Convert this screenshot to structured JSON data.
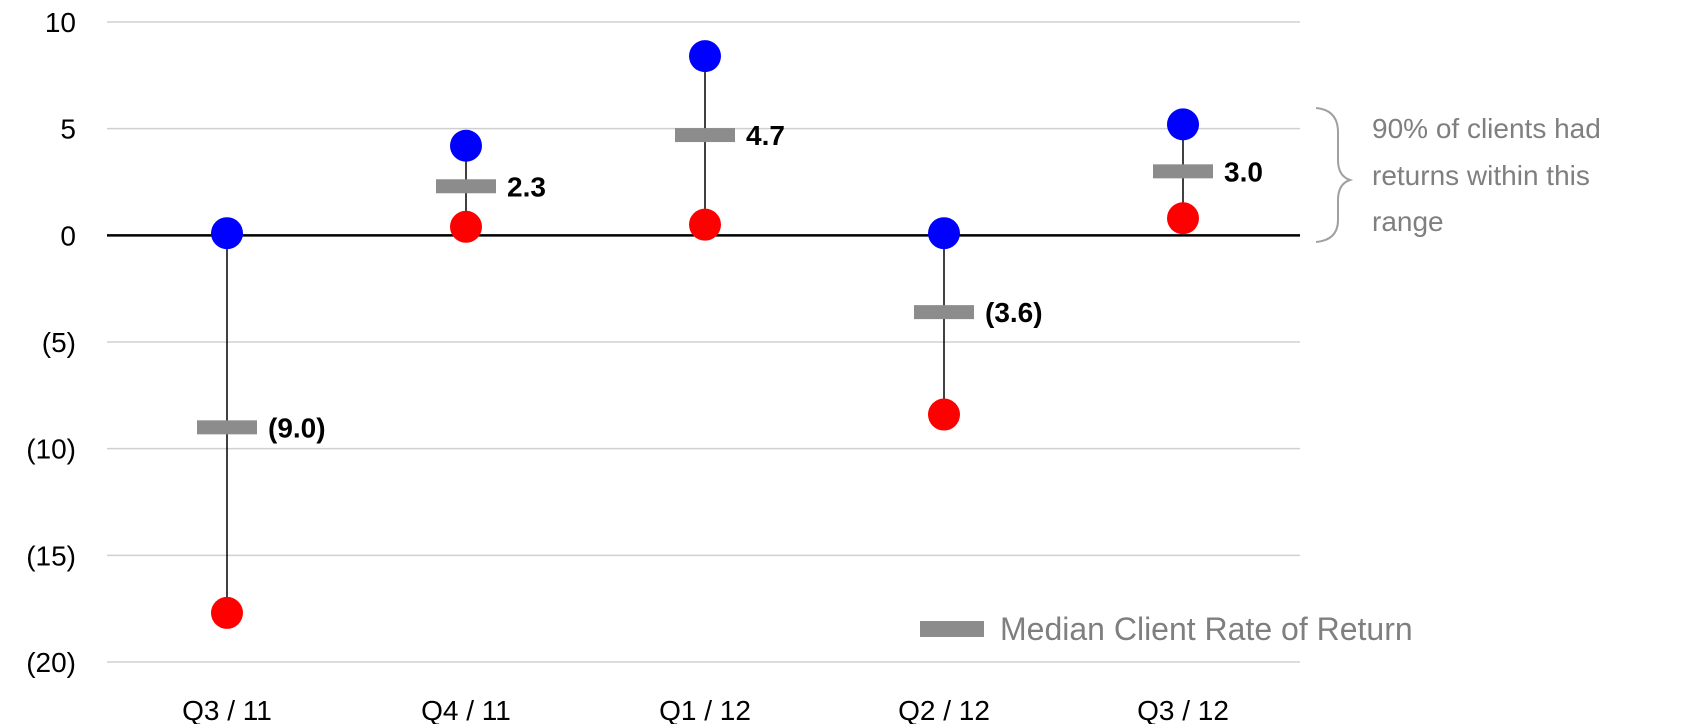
{
  "chart_data": {
    "type": "scatter",
    "title": "",
    "xlabel": "",
    "ylabel": "",
    "categories": [
      "Q3 / 11",
      "Q4 / 11",
      "Q1 / 12",
      "Q2 / 12",
      "Q3 / 12"
    ],
    "high": [
      0.1,
      4.2,
      8.4,
      0.1,
      5.2
    ],
    "low": [
      -17.7,
      0.4,
      0.5,
      -8.4,
      0.8
    ],
    "median": [
      -9.0,
      2.3,
      4.7,
      -3.6,
      3.0
    ],
    "median_labels": [
      "(9.0)",
      "2.3",
      "4.7",
      "(3.6)",
      "3.0"
    ],
    "ylim": [
      -20,
      10
    ],
    "y_ticks": [
      10,
      5,
      0,
      -5,
      -10,
      -15,
      -20
    ],
    "y_tick_labels": [
      "10",
      "5",
      "0",
      "(5)",
      "(10)",
      "(15)",
      "(20)"
    ],
    "grid": true,
    "legend": {
      "position": "bottom-right",
      "label": "Median Client Rate of Return"
    },
    "annotation": {
      "lines": [
        "90% of clients had",
        "returns within this",
        "range"
      ]
    },
    "colors": {
      "high": "#0000ff",
      "low": "#ff0000",
      "median": "#8c8c8c",
      "grid": "#d0d0d0",
      "zero_line": "#000000",
      "range_line": "#000000",
      "annotation": "#7f7f7f"
    }
  }
}
